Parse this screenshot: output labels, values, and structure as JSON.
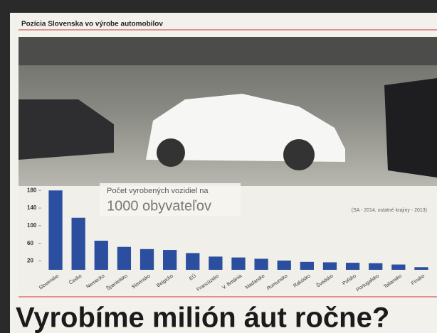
{
  "header": "Pozícia Slovenska vo výrobe automobilov",
  "headline": "Vyrobíme milión áut ročne?",
  "chart_data": {
    "type": "bar",
    "annotation": [
      "Počet vyrobených vozidiel na",
      "1000 obyvateľov"
    ],
    "source": "(SA - 2014, ostatné krajiny - 2013)",
    "categories": [
      "Slovensko",
      "Česko",
      "Nemecko",
      "Španielsko",
      "Slovinsko",
      "Belgicko",
      "EÚ",
      "Francúzsko",
      "V. Británia",
      "Maďarsko",
      "Rumunsko",
      "Rakúsko",
      "Švédsko",
      "Poľsko",
      "Portugalsko",
      "Taliansko",
      "Fínsko"
    ],
    "values": [
      180,
      118,
      66,
      52,
      47,
      45,
      38,
      30,
      28,
      25,
      21,
      18,
      17,
      16,
      15,
      12,
      6
    ],
    "color": "#2b4f9e",
    "ylim": [
      0,
      190
    ],
    "yticks": [
      20,
      60,
      100,
      140,
      180
    ],
    "grid": false
  }
}
